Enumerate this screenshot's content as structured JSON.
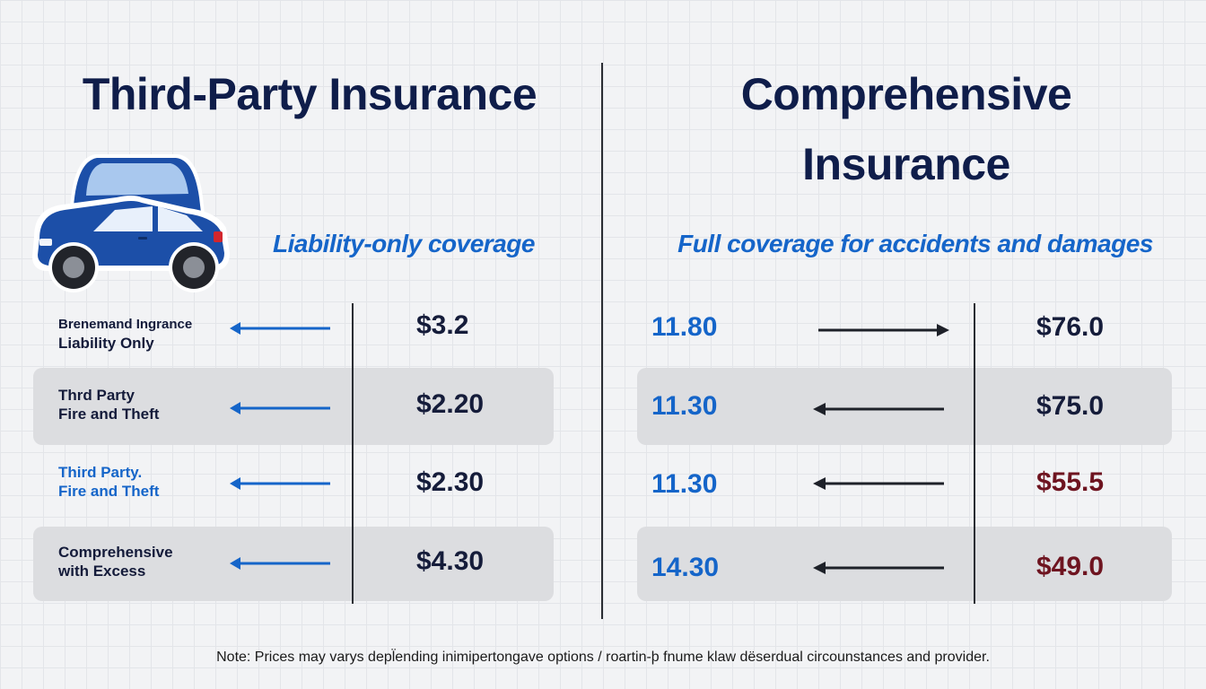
{
  "left": {
    "title": "Third-Party Insurance",
    "subtitle": "Liability-only coverage",
    "rows": [
      {
        "label_line1": "Brenemand Ingrance",
        "label_line2": "Liability Only",
        "price": "$3.2",
        "label_color": "#141b3a"
      },
      {
        "label_line1": "Thrd Party",
        "label_line2": "Fire and Theft",
        "price": "$2.20",
        "label_color": "#141b3a"
      },
      {
        "label_line1": "Third Party.",
        "label_line2": "Fire and Theft",
        "price": "$2.30",
        "label_color": "#1565c9"
      },
      {
        "label_line1": "Comprehensive",
        "label_line2": "with Excess",
        "price": "$4.30",
        "label_color": "#141b3a"
      }
    ],
    "icon": "car-icon"
  },
  "right": {
    "title_line1": "Comprehensive",
    "title_line2": "Insurance",
    "subtitle": "Full coverage for accidents and damages",
    "rows": [
      {
        "value": "11.80",
        "price": "$76.0",
        "arrow_direction": "right"
      },
      {
        "value": "11.30",
        "price": "$75.0",
        "arrow_direction": "left"
      },
      {
        "value": "11.30",
        "price": "$55.5",
        "arrow_direction": "left"
      },
      {
        "value": "14.30",
        "price": "$49.0",
        "arrow_direction": "left"
      }
    ]
  },
  "colors": {
    "title": "#0f1d4a",
    "accent_blue": "#1565c9",
    "maroon": "#6e1420",
    "band": "#dcdde0"
  },
  "note": "Note: Prices may varys depl̈ending inimipertongave options / roartin-þ fnume klaw dëserdual circounstances and provider."
}
